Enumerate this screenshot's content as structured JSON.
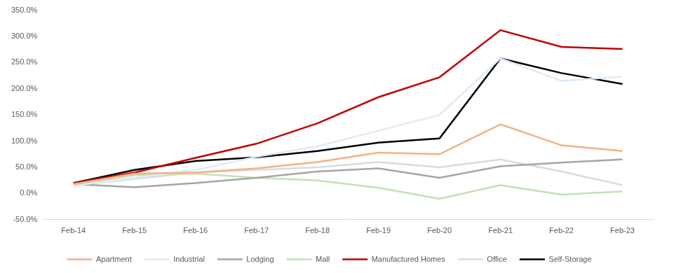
{
  "chart_data": {
    "type": "line",
    "categories": [
      "Feb-14",
      "Feb-15",
      "Feb-16",
      "Feb-17",
      "Feb-18",
      "Feb-19",
      "Feb-20",
      "Feb-21",
      "Feb-22",
      "Feb-23"
    ],
    "series": [
      {
        "name": "Apartment",
        "color": "#f4b183",
        "values": [
          18,
          38,
          40,
          48,
          60,
          78,
          75,
          132,
          92,
          81
        ]
      },
      {
        "name": "Industrial",
        "color": "#deebf7",
        "values": [
          15,
          30,
          45,
          70,
          90,
          120,
          150,
          258,
          215,
          223
        ]
      },
      {
        "name": "Lodging",
        "color": "#a5a5a5",
        "values": [
          18,
          12,
          20,
          30,
          42,
          48,
          30,
          52,
          59,
          65
        ]
      },
      {
        "name": "Mall",
        "color": "#c5e0b4",
        "values": [
          17,
          35,
          38,
          30,
          25,
          11,
          -10,
          16,
          -2,
          4
        ]
      },
      {
        "name": "Manufactured Homes",
        "color": "#c00000",
        "values": [
          20,
          40,
          68,
          95,
          134,
          184,
          222,
          312,
          280,
          276
        ]
      },
      {
        "name": "Office",
        "color": "#d6dce4",
        "values": [
          15,
          28,
          40,
          45,
          50,
          60,
          50,
          65,
          42,
          16
        ]
      },
      {
        "name": "Self-Storage",
        "color": "#000000",
        "values": [
          20,
          45,
          62,
          69,
          81,
          97,
          105,
          258,
          230,
          209
        ]
      }
    ],
    "ylim": [
      -50,
      350
    ],
    "yticks": [
      {
        "value": -50,
        "label": "-50.0%"
      },
      {
        "value": 0,
        "label": "0.0%"
      },
      {
        "value": 50,
        "label": "50.0%"
      },
      {
        "value": 100,
        "label": "100.0%"
      },
      {
        "value": 150,
        "label": "150.0%"
      },
      {
        "value": 200,
        "label": "200.0%"
      },
      {
        "value": 250,
        "label": "250.0%"
      },
      {
        "value": 300,
        "label": "300.0%"
      },
      {
        "value": 350,
        "label": "350.0%"
      }
    ],
    "grid": false,
    "legend": "bottom",
    "marker": "none",
    "line_style": "solid"
  }
}
